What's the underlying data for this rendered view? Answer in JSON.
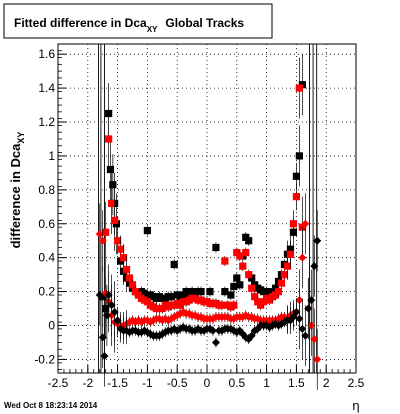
{
  "chart_data": {
    "type": "scatter",
    "title_main": "Fitted difference in Dca",
    "title_sub": "XY",
    "title_rest": "Global Tracks",
    "ylabel_main": "difference in Dca",
    "ylabel_sub": "XY",
    "xlabel": "η",
    "timestamp": "Wed Oct  8 18:23:14 2014",
    "xlim": [
      -2.5,
      2.5
    ],
    "ylim": [
      -0.28,
      1.66
    ],
    "x_ticks": [
      "-2.5",
      "-2",
      "-1.5",
      "-1",
      "-0.5",
      "0",
      "0.5",
      "1",
      "1.5",
      "2",
      "2.5"
    ],
    "x_tick_values": [
      -2.5,
      -2,
      -1.5,
      -1,
      -0.5,
      0,
      0.5,
      1,
      1.5,
      2,
      2.5
    ],
    "y_ticks": [
      "-0.2",
      "0",
      "0.2",
      "0.4",
      "0.6",
      "0.8",
      "1",
      "1.2",
      "1.4",
      "1.6"
    ],
    "y_tick_values": [
      -0.2,
      0,
      0.2,
      0.4,
      0.6,
      0.8,
      1,
      1.2,
      1.4,
      1.6
    ],
    "grid": true,
    "series": [
      {
        "marker": "square",
        "color": "#000000",
        "points": [
          [
            -1.75,
            0.17
          ],
          [
            -1.7,
            0.1
          ],
          [
            -1.65,
            1.25
          ],
          [
            -1.62,
            0.92
          ],
          [
            -1.58,
            0.83
          ],
          [
            -1.55,
            0.72
          ],
          [
            -1.52,
            0.6
          ],
          [
            -1.45,
            0.38
          ],
          [
            -1.4,
            0.32
          ],
          [
            -1.35,
            0.28
          ],
          [
            -1.3,
            0.25
          ],
          [
            -1.25,
            0.22
          ],
          [
            -1.2,
            0.2
          ],
          [
            -1.15,
            0.18
          ],
          [
            -1.1,
            0.2
          ],
          [
            -1.05,
            0.19
          ],
          [
            -1.0,
            0.56
          ],
          [
            -0.95,
            0.18
          ],
          [
            -0.9,
            0.17
          ],
          [
            -0.85,
            0.16
          ],
          [
            -0.8,
            0.17
          ],
          [
            -0.75,
            0.16
          ],
          [
            -0.7,
            0.16
          ],
          [
            -0.65,
            0.17
          ],
          [
            -0.6,
            0.17
          ],
          [
            -0.55,
            0.36
          ],
          [
            -0.5,
            0.18
          ],
          [
            -0.45,
            0.17
          ],
          [
            -0.4,
            0.18
          ],
          [
            -0.35,
            0.2
          ],
          [
            -0.3,
            0.19
          ],
          [
            -0.25,
            0.2
          ],
          [
            -0.2,
            0.19
          ],
          [
            -0.15,
            0.2
          ],
          [
            -0.1,
            0.2
          ],
          [
            0.05,
            0.2
          ],
          [
            0.15,
            0.46
          ],
          [
            0.3,
            0.2
          ],
          [
            0.4,
            0.18
          ],
          [
            0.45,
            0.23
          ],
          [
            0.5,
            0.28
          ],
          [
            0.55,
            0.24
          ],
          [
            0.6,
            0.41
          ],
          [
            0.65,
            0.52
          ],
          [
            0.7,
            0.5
          ],
          [
            0.75,
            0.28
          ],
          [
            0.8,
            0.24
          ],
          [
            0.85,
            0.22
          ],
          [
            0.9,
            0.21
          ],
          [
            0.95,
            0.2
          ],
          [
            1.0,
            0.2
          ],
          [
            1.05,
            0.18
          ],
          [
            1.1,
            0.2
          ],
          [
            1.15,
            0.22
          ],
          [
            1.2,
            0.26
          ],
          [
            1.25,
            0.3
          ],
          [
            1.3,
            0.36
          ],
          [
            1.35,
            0.42
          ],
          [
            1.4,
            0.45
          ],
          [
            1.45,
            0.55
          ],
          [
            1.5,
            0.88
          ],
          [
            1.55,
            1.0
          ],
          [
            1.6,
            1.42
          ]
        ]
      },
      {
        "marker": "square",
        "color": "#ff0000",
        "points": [
          [
            -1.7,
            0.55
          ],
          [
            -1.65,
            1.1
          ],
          [
            -1.6,
            0.72
          ],
          [
            -1.55,
            0.62
          ],
          [
            -1.5,
            0.5
          ],
          [
            -1.45,
            0.45
          ],
          [
            -1.4,
            0.4
          ],
          [
            -1.35,
            0.33
          ],
          [
            -1.3,
            0.28
          ],
          [
            -1.25,
            0.24
          ],
          [
            -1.2,
            0.2
          ],
          [
            -1.15,
            0.18
          ],
          [
            -1.1,
            0.16
          ],
          [
            -1.05,
            0.15
          ],
          [
            -1.0,
            0.14
          ],
          [
            -0.95,
            0.12
          ],
          [
            -0.9,
            0.11
          ],
          [
            -0.85,
            0.1
          ],
          [
            -0.8,
            0.1
          ],
          [
            -0.75,
            0.1
          ],
          [
            -0.7,
            0.12
          ],
          [
            -0.65,
            0.11
          ],
          [
            -0.6,
            0.12
          ],
          [
            -0.55,
            0.12
          ],
          [
            -0.5,
            0.13
          ],
          [
            -0.45,
            0.12
          ],
          [
            -0.4,
            0.14
          ],
          [
            -0.35,
            0.14
          ],
          [
            -0.3,
            0.15
          ],
          [
            -0.25,
            0.16
          ],
          [
            -0.2,
            0.16
          ],
          [
            -0.15,
            0.15
          ],
          [
            -0.1,
            0.15
          ],
          [
            -0.05,
            0.14
          ],
          [
            0.0,
            0.14
          ],
          [
            0.05,
            0.13
          ],
          [
            0.1,
            0.13
          ],
          [
            0.15,
            0.13
          ],
          [
            0.2,
            0.12
          ],
          [
            0.25,
            0.12
          ],
          [
            0.3,
            0.38
          ],
          [
            0.35,
            0.12
          ],
          [
            0.4,
            0.11
          ],
          [
            0.45,
            0.12
          ],
          [
            0.5,
            0.43
          ],
          [
            0.55,
            0.41
          ],
          [
            0.6,
            0.35
          ],
          [
            0.65,
            0.43
          ],
          [
            0.7,
            0.3
          ],
          [
            0.75,
            0.22
          ],
          [
            0.8,
            0.17
          ],
          [
            0.85,
            0.14
          ],
          [
            0.9,
            0.12
          ],
          [
            0.95,
            0.14
          ],
          [
            1.0,
            0.16
          ],
          [
            1.05,
            0.15
          ],
          [
            1.1,
            0.17
          ],
          [
            1.15,
            0.18
          ],
          [
            1.2,
            0.2
          ],
          [
            1.25,
            0.25
          ],
          [
            1.3,
            0.3
          ],
          [
            1.35,
            0.35
          ],
          [
            1.4,
            0.42
          ],
          [
            1.45,
            0.6
          ],
          [
            1.5,
            0.76
          ],
          [
            1.55,
            1.4
          ],
          [
            1.6,
            0.58
          ]
        ]
      },
      {
        "marker": "circle",
        "color": "#ff0000",
        "points": [
          [
            -1.8,
            0.54
          ],
          [
            -1.75,
            0.5
          ],
          [
            -1.7,
            0.19
          ],
          [
            -1.65,
            0.14
          ],
          [
            -1.6,
            0.06
          ],
          [
            -1.55,
            0.02
          ],
          [
            -1.5,
            0.01
          ],
          [
            -1.45,
            0.0
          ],
          [
            -1.4,
            0.0
          ],
          [
            -1.35,
            0.01
          ],
          [
            -1.3,
            0.02
          ],
          [
            -1.25,
            0.03
          ],
          [
            -1.2,
            0.02
          ],
          [
            -1.15,
            0.03
          ],
          [
            -1.1,
            0.02
          ],
          [
            -1.05,
            0.03
          ],
          [
            -1.0,
            0.03
          ],
          [
            -0.95,
            0.02
          ],
          [
            -0.9,
            0.03
          ],
          [
            -0.85,
            0.04
          ],
          [
            -0.8,
            0.04
          ],
          [
            -0.75,
            0.03
          ],
          [
            -0.7,
            0.04
          ],
          [
            -0.65,
            0.03
          ],
          [
            -0.6,
            0.04
          ],
          [
            -0.55,
            0.05
          ],
          [
            -0.5,
            0.06
          ],
          [
            -0.45,
            0.07
          ],
          [
            -0.4,
            0.08
          ],
          [
            -0.35,
            0.07
          ],
          [
            -0.3,
            0.07
          ],
          [
            -0.25,
            0.06
          ],
          [
            -0.2,
            0.06
          ],
          [
            -0.15,
            0.05
          ],
          [
            -0.1,
            0.05
          ],
          [
            -0.05,
            0.04
          ],
          [
            0.0,
            0.04
          ],
          [
            0.05,
            0.04
          ],
          [
            0.1,
            0.04
          ],
          [
            0.15,
            0.05
          ],
          [
            0.2,
            0.05
          ],
          [
            0.25,
            0.05
          ],
          [
            0.3,
            0.05
          ],
          [
            0.35,
            0.05
          ],
          [
            0.4,
            0.04
          ],
          [
            0.45,
            0.04
          ],
          [
            0.5,
            0.05
          ],
          [
            0.55,
            0.05
          ],
          [
            0.6,
            0.05
          ],
          [
            0.65,
            0.06
          ],
          [
            0.7,
            0.05
          ],
          [
            0.75,
            0.05
          ],
          [
            0.8,
            0.04
          ],
          [
            0.85,
            0.04
          ],
          [
            0.9,
            0.03
          ],
          [
            0.95,
            0.03
          ],
          [
            1.0,
            0.03
          ],
          [
            1.05,
            0.03
          ],
          [
            1.1,
            0.03
          ],
          [
            1.15,
            0.03
          ],
          [
            1.2,
            0.04
          ],
          [
            1.25,
            0.05
          ],
          [
            1.3,
            0.05
          ],
          [
            1.35,
            0.04
          ],
          [
            1.4,
            0.06
          ],
          [
            1.45,
            0.07
          ],
          [
            1.5,
            0.08
          ],
          [
            1.55,
            0.15
          ],
          [
            1.6,
            0.4
          ],
          [
            1.65,
            0.6
          ],
          [
            1.7,
            0.1
          ],
          [
            1.75,
            0.0
          ],
          [
            1.8,
            -0.08
          ],
          [
            1.85,
            -0.2
          ]
        ]
      },
      {
        "marker": "circle",
        "color": "#000000",
        "points": [
          [
            -1.8,
            0.18
          ],
          [
            -1.75,
            -0.07
          ],
          [
            -1.72,
            -0.18
          ],
          [
            -1.68,
            0.06
          ],
          [
            -1.65,
            0.18
          ],
          [
            -1.6,
            0.12
          ],
          [
            -1.55,
            0.08
          ],
          [
            -1.5,
            0.03
          ],
          [
            -1.45,
            -0.02
          ],
          [
            -1.4,
            -0.03
          ],
          [
            -1.35,
            -0.03
          ],
          [
            -1.3,
            -0.04
          ],
          [
            -1.25,
            -0.03
          ],
          [
            -1.2,
            -0.03
          ],
          [
            -1.15,
            -0.04
          ],
          [
            -1.1,
            -0.04
          ],
          [
            -1.05,
            -0.03
          ],
          [
            -1.0,
            -0.04
          ],
          [
            -0.95,
            -0.05
          ],
          [
            -0.9,
            -0.06
          ],
          [
            -0.85,
            -0.06
          ],
          [
            -0.8,
            -0.06
          ],
          [
            -0.75,
            -0.05
          ],
          [
            -0.7,
            -0.04
          ],
          [
            -0.65,
            -0.03
          ],
          [
            -0.6,
            -0.03
          ],
          [
            -0.55,
            -0.02
          ],
          [
            -0.5,
            -0.03
          ],
          [
            -0.45,
            -0.02
          ],
          [
            -0.4,
            -0.01
          ],
          [
            -0.35,
            -0.02
          ],
          [
            -0.3,
            -0.02
          ],
          [
            -0.25,
            -0.03
          ],
          [
            -0.2,
            -0.03
          ],
          [
            -0.15,
            -0.02
          ],
          [
            -0.1,
            -0.03
          ],
          [
            -0.05,
            -0.03
          ],
          [
            0.0,
            -0.02
          ],
          [
            0.05,
            -0.02
          ],
          [
            0.1,
            -0.03
          ],
          [
            0.15,
            -0.1
          ],
          [
            0.2,
            -0.03
          ],
          [
            0.25,
            -0.03
          ],
          [
            0.3,
            -0.02
          ],
          [
            0.35,
            -0.02
          ],
          [
            0.4,
            -0.02
          ],
          [
            0.45,
            -0.03
          ],
          [
            0.5,
            -0.04
          ],
          [
            0.55,
            -0.03
          ],
          [
            0.6,
            -0.05
          ],
          [
            0.65,
            -0.07
          ],
          [
            0.7,
            -0.08
          ],
          [
            0.75,
            -0.06
          ],
          [
            0.8,
            -0.03
          ],
          [
            0.85,
            -0.02
          ],
          [
            0.9,
            0.0
          ],
          [
            0.95,
            0.0
          ],
          [
            1.0,
            0.0
          ],
          [
            1.05,
            -0.01
          ],
          [
            1.1,
            0.0
          ],
          [
            1.15,
            0.01
          ],
          [
            1.2,
            0.0
          ],
          [
            1.25,
            0.01
          ],
          [
            1.3,
            0.02
          ],
          [
            1.35,
            0.03
          ],
          [
            1.4,
            0.03
          ],
          [
            1.45,
            0.05
          ],
          [
            1.5,
            0.08
          ],
          [
            1.55,
            0.04
          ],
          [
            1.6,
            -0.02
          ],
          [
            1.65,
            -0.06
          ],
          [
            1.7,
            0.1
          ],
          [
            1.75,
            0.15
          ],
          [
            1.8,
            0.35
          ],
          [
            1.85,
            0.5
          ]
        ]
      }
    ]
  }
}
